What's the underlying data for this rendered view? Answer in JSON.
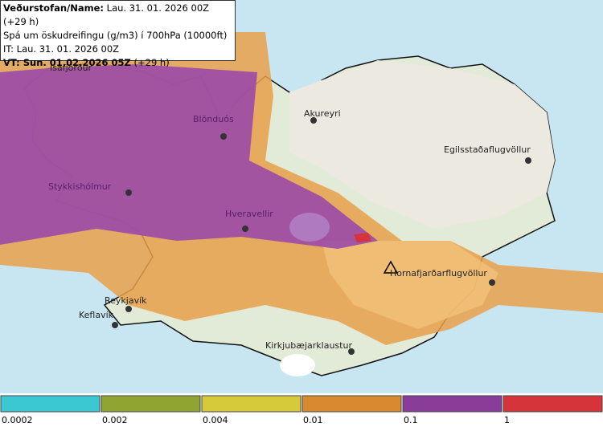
{
  "header": {
    "lines": [
      {
        "bold": "Veðurstofan/Name:",
        "text": "Lau. 31. 01. 2026 00Z (+29 h)"
      },
      {
        "text": "Spá um öskudreifingu (g/m3) í 700hPa (10000ft)"
      },
      {
        "text": "IT: Lau. 31. 01. 2026 00Z"
      },
      {
        "bold": "VT: Sun. 01.02.2026 05Z",
        "text": "(+29 h)"
      }
    ]
  },
  "places": [
    {
      "label": "Ísafjörður"
    },
    {
      "label": "Blönduós"
    },
    {
      "label": "Akureyri"
    },
    {
      "label": "Egilsstaðaflugvöllur"
    },
    {
      "label": "Stykkishólmur"
    },
    {
      "label": "Hveravellir"
    },
    {
      "label": "Hornafjarðarflugvöllur"
    },
    {
      "label": "Reykjavík"
    },
    {
      "label": "Keflavík"
    },
    {
      "label": "Kirkjubæjarklaustur"
    }
  ],
  "legend": {
    "items": [
      {
        "label": "0.0002",
        "color": "#3cc8d2"
      },
      {
        "label": "0.002",
        "color": "#8fa431"
      },
      {
        "label": "0.004",
        "color": "#d6c93a"
      },
      {
        "label": "0.01",
        "color": "#d98a2e"
      },
      {
        "label": "0.1",
        "color": "#8a3d98"
      },
      {
        "label": "1",
        "color": "#d4343a"
      }
    ]
  }
}
